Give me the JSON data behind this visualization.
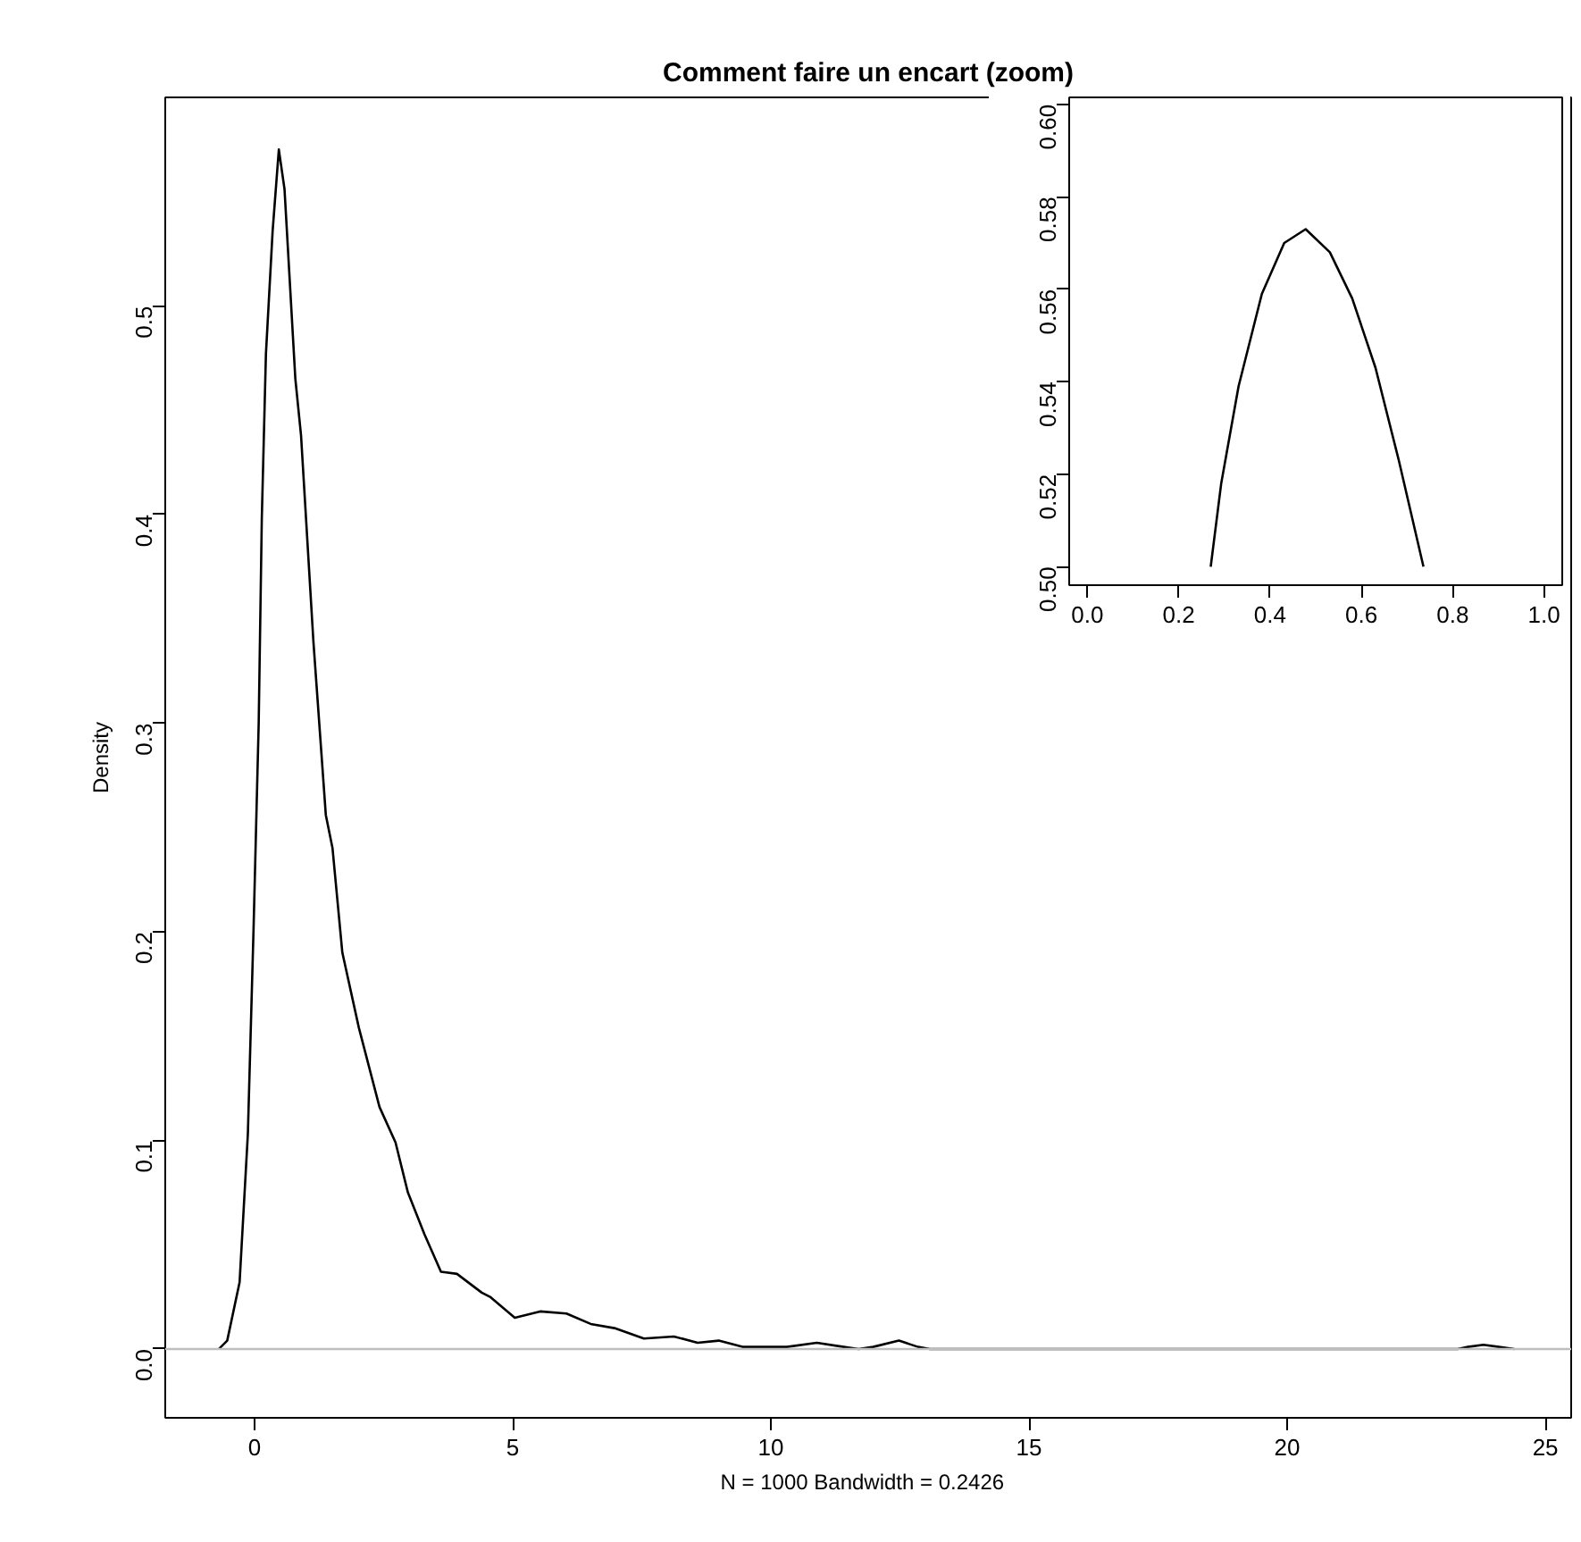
{
  "chart_data": [
    {
      "type": "line",
      "title": "Comment faire un encart (zoom)",
      "xlabel": "N = 1000   Bandwidth = 0.2426",
      "ylabel": "Density",
      "color": "#000000",
      "grid": false,
      "x": [
        -0.69,
        -0.53,
        -0.29,
        -0.13,
        -0.02,
        0.08,
        0.14,
        0.22,
        0.35,
        0.47,
        0.58,
        0.79,
        0.9,
        1.14,
        1.38,
        1.51,
        1.7,
        2.02,
        2.42,
        2.73,
        2.97,
        3.29,
        3.61,
        3.92,
        4.4,
        4.56,
        5.04,
        5.53,
        6.04,
        6.51,
        6.97,
        7.54,
        8.12,
        8.58,
        8.99,
        9.45,
        9.97,
        10.31,
        10.89,
        11.41,
        11.7,
        11.98,
        12.48,
        12.85,
        13.08,
        13.3,
        23.3,
        23.5,
        23.8,
        24.1,
        24.4
      ],
      "values": [
        0,
        0.004,
        0.032,
        0.103,
        0.201,
        0.3,
        0.398,
        0.477,
        0.536,
        0.575,
        0.556,
        0.465,
        0.438,
        0.339,
        0.256,
        0.24,
        0.19,
        0.154,
        0.116,
        0.099,
        0.075,
        0.055,
        0.037,
        0.036,
        0.027,
        0.025,
        0.015,
        0.018,
        0.017,
        0.012,
        0.01,
        0.005,
        0.006,
        0.003,
        0.004,
        0.001,
        0.001,
        0.001,
        0.003,
        0.001,
        0,
        0.001,
        0.004,
        0.001,
        0,
        0,
        0,
        0.001,
        0.002,
        0.001,
        0
      ],
      "xlim": [
        -1.73,
        25.5
      ],
      "ylim": [
        -0.033,
        0.6
      ],
      "xticks": [
        0,
        5,
        10,
        15,
        20,
        25
      ],
      "yticks": [
        {
          "value": 0,
          "label": "0.0"
        },
        0.1,
        0.2,
        0.3,
        0.4,
        0.5
      ],
      "ref_lines": [
        {
          "axis": "y",
          "value": 0,
          "color": "#bebebe"
        }
      ]
    },
    {
      "type": "line",
      "color": "#000000",
      "grid": false,
      "x": [
        0.27,
        0.293,
        0.331,
        0.382,
        0.431,
        0.478,
        0.531,
        0.58,
        0.631,
        0.682,
        0.736
      ],
      "values": [
        0.5,
        0.518,
        0.539,
        0.559,
        0.57,
        0.573,
        0.568,
        0.558,
        0.543,
        0.523,
        0.5
      ],
      "xlim": [
        -0.04,
        1.04
      ],
      "ylim": [
        0.496,
        0.6015
      ],
      "xticks": [
        {
          "value": 0,
          "label": "0.0"
        },
        0.2,
        0.4,
        0.6,
        0.8,
        {
          "value": 1,
          "label": "1.0"
        }
      ],
      "yticks": [
        {
          "value": 0.5,
          "label": "0.50"
        },
        0.52,
        0.54,
        0.56,
        0.58,
        {
          "value": 0.6,
          "label": "0.60"
        }
      ]
    }
  ]
}
